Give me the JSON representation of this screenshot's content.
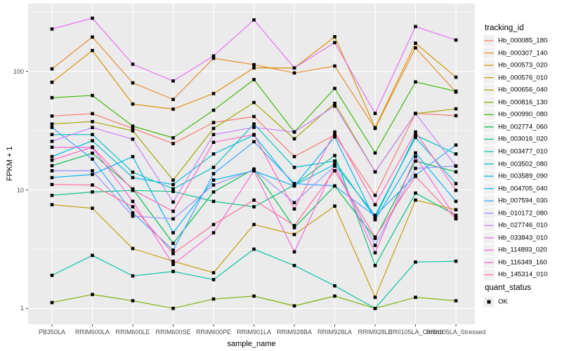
{
  "style": {
    "figure_bg": "#FFFFFF",
    "panel_bg": "#EBEBEB",
    "grid_major": "#FFFFFF",
    "grid_minor": "#FFFFFF",
    "tick_mark_color": "#333333",
    "tick_text_color": "#4D4D4D",
    "point_color": "#000000"
  },
  "axes": {
    "x_title": "sample_name",
    "y_title": "FPKM + 1"
  },
  "legend": {
    "tracking_title": "tracking_id",
    "quant_title": "quant_status",
    "quant_items": [
      {
        "label": "OK",
        "symbol": "square",
        "color": "#000000"
      }
    ]
  },
  "chart_data": {
    "type": "line",
    "title": "",
    "xlabel": "sample_name",
    "ylabel": "FPKM + 1",
    "y_scale": "log10",
    "grid": true,
    "legend_position": "right",
    "y_ticks": [
      1,
      10,
      100
    ],
    "y_minor_ticks": [
      3.162,
      31.62,
      316.2
    ],
    "ylim": [
      0.73,
      374
    ],
    "point_shape": "filled-square",
    "categories": [
      "PB350LA",
      "RRIM600LA",
      "RRIM600LE",
      "RRIM600SE",
      "RRIM600PE",
      "RRIM901LA",
      "RRIM928BA",
      "RRIM928LA",
      "RRIM928LE",
      "RRII105LA_Control",
      "RRII105LA_Stressed"
    ],
    "series": [
      {
        "name": "Hb_000085_180",
        "color": "#F8766D",
        "values": [
          42,
          44,
          33,
          24.6,
          37,
          41.6,
          19.1,
          29.1,
          9.0,
          44.2,
          42.3
        ]
      },
      {
        "name": "Hb_000307_140",
        "color": "#E98A2B",
        "values": [
          105,
          195,
          80,
          58,
          129,
          114,
          97,
          111,
          33,
          158,
          67
        ]
      },
      {
        "name": "Hb_000573_020",
        "color": "#D89000",
        "values": [
          81,
          150,
          53,
          48,
          65,
          107,
          107,
          196,
          33.5,
          173,
          89.3
        ]
      },
      {
        "name": "Hb_000576_010",
        "color": "#C09B00",
        "values": [
          7.5,
          7.0,
          3.2,
          2.5,
          2.0,
          5.1,
          4.2,
          7.3,
          1.24,
          8.2,
          6.8
        ]
      },
      {
        "name": "Hb_000656_040",
        "color": "#A3A500",
        "values": [
          36,
          37.7,
          31.5,
          12.1,
          33,
          54.6,
          27,
          53.8,
          14.2,
          44,
          48.3
        ]
      },
      {
        "name": "Hb_000816_130",
        "color": "#7CAE00",
        "values": [
          1.12,
          1.31,
          1.16,
          1.0,
          1.2,
          1.27,
          1.05,
          1.27,
          1.0,
          1.24,
          1.16
        ]
      },
      {
        "name": "Hb_000990_080",
        "color": "#39B600",
        "values": [
          60,
          62.6,
          34.5,
          27.5,
          47,
          85.3,
          30.8,
          71.8,
          20.5,
          81.5,
          68
        ]
      },
      {
        "name": "Hb_002774_060",
        "color": "#00BB4E",
        "values": [
          16,
          20.4,
          10.2,
          3.54,
          9.6,
          15,
          4.8,
          10.8,
          3.9,
          17.5,
          14.2
        ]
      },
      {
        "name": "Hb_003016_020",
        "color": "#00BF7D",
        "values": [
          9.0,
          9.6,
          9.9,
          9.7,
          8.0,
          7.2,
          11.0,
          19.5,
          2.3,
          9.4,
          6.1
        ]
      },
      {
        "name": "Hb_003477_010",
        "color": "#00C1A3",
        "values": [
          1.9,
          2.8,
          1.88,
          2.05,
          1.75,
          3.16,
          2.3,
          1.55,
          1.0,
          2.46,
          2.5
        ]
      },
      {
        "name": "Hb_003502_080",
        "color": "#00BFC4",
        "values": [
          29.3,
          29.3,
          14.1,
          10.2,
          15.5,
          36,
          15.5,
          17.5,
          5.8,
          29,
          20.1
        ]
      },
      {
        "name": "Hb_003589_090",
        "color": "#00BBDA",
        "values": [
          19.1,
          26,
          12.7,
          11.1,
          20.1,
          29,
          10.9,
          16.4,
          6.1,
          27.7,
          11.3
        ]
      },
      {
        "name": "Hb_004705_040",
        "color": "#00B0F6",
        "values": [
          12.7,
          13.5,
          19.1,
          4.35,
          12.1,
          14.5,
          10.8,
          28,
          5.6,
          20.5,
          8.0
        ]
      },
      {
        "name": "Hb_007594_030",
        "color": "#35A2FF",
        "values": [
          33.7,
          18.2,
          6.4,
          3.1,
          13.7,
          25.5,
          11.3,
          10.8,
          6.0,
          13.3,
          23.9
        ]
      },
      {
        "name": "Hb_010172_080",
        "color": "#9590FF",
        "values": [
          14.5,
          14.5,
          6.0,
          5.7,
          11.0,
          14.8,
          7.8,
          15.9,
          3.4,
          15.2,
          15.9
        ]
      },
      {
        "name": "Hb_027746_010",
        "color": "#C77CFF",
        "values": [
          25.7,
          33.6,
          26.8,
          7.9,
          29.3,
          33.7,
          30.8,
          51,
          14.2,
          44.2,
          15.9
        ]
      },
      {
        "name": "Hb_033843_010",
        "color": "#E76BF3",
        "values": [
          228,
          281,
          115,
          83,
          135,
          272,
          107,
          175,
          44.2,
          239,
          184
        ]
      },
      {
        "name": "Hb_114893_020",
        "color": "#FA62DB",
        "values": [
          22.9,
          22.8,
          8.0,
          2.35,
          4.35,
          14.5,
          3.0,
          16,
          2.95,
          19.1,
          5.8
        ]
      },
      {
        "name": "Hb_116349_160",
        "color": "#FF62BC",
        "values": [
          17.8,
          23,
          10.0,
          6.6,
          25.2,
          29.3,
          6.9,
          30.8,
          7.5,
          30.8,
          9.9
        ]
      },
      {
        "name": "Hb_145314_010",
        "color": "#FF6A98",
        "values": [
          11.1,
          11.0,
          7.2,
          2.9,
          5.1,
          8.2,
          5.0,
          14.5,
          4.0,
          13,
          5.7
        ]
      }
    ]
  }
}
